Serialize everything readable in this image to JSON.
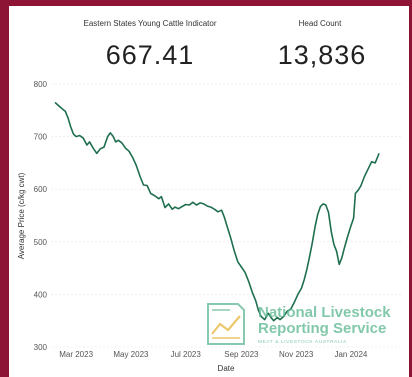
{
  "kpis": [
    {
      "label": "Eastern States Young Cattle Indicator",
      "value": "667.41"
    },
    {
      "label": "Head Count",
      "value": "13,836"
    }
  ],
  "watermark": {
    "line1": "National Livestock",
    "line2": "Reporting Service",
    "line3": "MEAT & LIVESTOCK AUSTRALIA",
    "icon": "document-chart-logo",
    "color": "#5fb894"
  },
  "colors": {
    "line": "#1f6f4f",
    "border": "#8e1436"
  },
  "chart_data": {
    "type": "line",
    "xlabel": "Date",
    "ylabel": "Average Price (c/kg cwt)",
    "ylim": [
      300,
      800
    ],
    "yticks": [
      300,
      400,
      500,
      600,
      700,
      800
    ],
    "xlim": [
      "2023-02-01",
      "2024-02-28"
    ],
    "xticks": [
      {
        "date": "2023-03-01",
        "label": "Mar 2023"
      },
      {
        "date": "2023-05-01",
        "label": "May 2023"
      },
      {
        "date": "2023-07-01",
        "label": "Jul 2023"
      },
      {
        "date": "2023-09-01",
        "label": "Sep 2023"
      },
      {
        "date": "2023-11-01",
        "label": "Nov 2023"
      },
      {
        "date": "2024-01-01",
        "label": "Jan 2024"
      }
    ],
    "series": [
      {
        "points": [
          [
            "2023-02-06",
            764
          ],
          [
            "2023-02-10",
            758
          ],
          [
            "2023-02-14",
            752
          ],
          [
            "2023-02-17",
            748
          ],
          [
            "2023-02-20",
            735
          ],
          [
            "2023-02-23",
            718
          ],
          [
            "2023-02-26",
            705
          ],
          [
            "2023-03-01",
            700
          ],
          [
            "2023-03-05",
            702
          ],
          [
            "2023-03-09",
            697
          ],
          [
            "2023-03-13",
            684
          ],
          [
            "2023-03-16",
            690
          ],
          [
            "2023-03-20",
            678
          ],
          [
            "2023-03-24",
            668
          ],
          [
            "2023-03-28",
            677
          ],
          [
            "2023-04-01",
            680
          ],
          [
            "2023-04-05",
            700
          ],
          [
            "2023-04-08",
            707
          ],
          [
            "2023-04-11",
            701
          ],
          [
            "2023-04-14",
            690
          ],
          [
            "2023-04-17",
            693
          ],
          [
            "2023-04-21",
            688
          ],
          [
            "2023-04-25",
            678
          ],
          [
            "2023-04-29",
            672
          ],
          [
            "2023-05-03",
            660
          ],
          [
            "2023-05-07",
            645
          ],
          [
            "2023-05-11",
            625
          ],
          [
            "2023-05-15",
            608
          ],
          [
            "2023-05-19",
            607
          ],
          [
            "2023-05-23",
            592
          ],
          [
            "2023-05-27",
            588
          ],
          [
            "2023-06-01",
            582
          ],
          [
            "2023-06-04",
            586
          ],
          [
            "2023-06-08",
            565
          ],
          [
            "2023-06-12",
            572
          ],
          [
            "2023-06-16",
            562
          ],
          [
            "2023-06-19",
            566
          ],
          [
            "2023-06-23",
            563
          ],
          [
            "2023-06-27",
            567
          ],
          [
            "2023-07-01",
            571
          ],
          [
            "2023-07-05",
            570
          ],
          [
            "2023-07-09",
            575
          ],
          [
            "2023-07-13",
            570
          ],
          [
            "2023-07-17",
            574
          ],
          [
            "2023-07-21",
            572
          ],
          [
            "2023-07-25",
            568
          ],
          [
            "2023-07-29",
            566
          ],
          [
            "2023-08-02",
            562
          ],
          [
            "2023-08-06",
            557
          ],
          [
            "2023-08-10",
            560
          ],
          [
            "2023-08-13",
            547
          ],
          [
            "2023-08-16",
            530
          ],
          [
            "2023-08-20",
            508
          ],
          [
            "2023-08-24",
            483
          ],
          [
            "2023-08-28",
            462
          ],
          [
            "2023-09-01",
            452
          ],
          [
            "2023-09-05",
            442
          ],
          [
            "2023-09-09",
            425
          ],
          [
            "2023-09-13",
            405
          ],
          [
            "2023-09-17",
            388
          ],
          [
            "2023-09-20",
            370
          ],
          [
            "2023-09-23",
            358
          ],
          [
            "2023-09-27",
            352
          ],
          [
            "2023-10-01",
            364
          ],
          [
            "2023-10-04",
            356
          ],
          [
            "2023-10-07",
            350
          ],
          [
            "2023-10-11",
            356
          ],
          [
            "2023-10-14",
            352
          ],
          [
            "2023-10-18",
            358
          ],
          [
            "2023-10-22",
            368
          ],
          [
            "2023-10-26",
            372
          ],
          [
            "2023-10-30",
            385
          ],
          [
            "2023-11-03",
            400
          ],
          [
            "2023-11-07",
            412
          ],
          [
            "2023-11-10",
            428
          ],
          [
            "2023-11-13",
            448
          ],
          [
            "2023-11-16",
            472
          ],
          [
            "2023-11-19",
            498
          ],
          [
            "2023-11-22",
            528
          ],
          [
            "2023-11-25",
            552
          ],
          [
            "2023-11-28",
            567
          ],
          [
            "2023-12-01",
            572
          ],
          [
            "2023-12-04",
            570
          ],
          [
            "2023-12-07",
            556
          ],
          [
            "2023-12-10",
            520
          ],
          [
            "2023-12-13",
            495
          ],
          [
            "2023-12-16",
            482
          ],
          [
            "2023-12-19",
            457
          ],
          [
            "2023-12-22",
            470
          ],
          [
            "2023-12-25",
            490
          ],
          [
            "2023-12-28",
            508
          ],
          [
            "2024-01-01",
            530
          ],
          [
            "2024-01-04",
            545
          ],
          [
            "2024-01-06",
            592
          ],
          [
            "2024-01-09",
            598
          ],
          [
            "2024-01-12",
            606
          ],
          [
            "2024-01-16",
            624
          ],
          [
            "2024-01-20",
            638
          ],
          [
            "2024-01-24",
            652
          ],
          [
            "2024-01-28",
            650
          ],
          [
            "2024-02-01",
            667
          ]
        ]
      }
    ]
  }
}
